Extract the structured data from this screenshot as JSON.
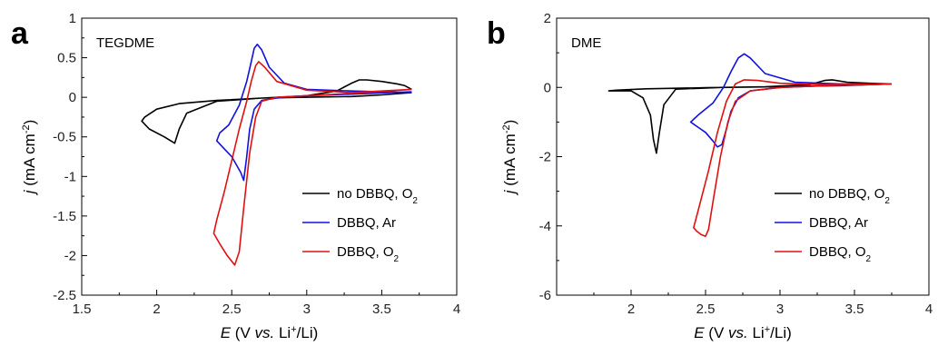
{
  "chart_data": [
    {
      "type": "line",
      "panel_label": "a",
      "inset_label": "TEGDME",
      "xlabel": {
        "italic": "E",
        "pre": " (V ",
        "vs": "vs.",
        "post": " Li",
        "sup": "+",
        "end": "/Li)"
      },
      "ylabel": {
        "italic": "j",
        "pre": " (mA cm",
        "sup": "-2",
        "end": ")"
      },
      "xlim": [
        1.5,
        4.0
      ],
      "ylim": [
        -2.5,
        1.0
      ],
      "xticks": [
        "1.5",
        "2",
        "2.5",
        "3",
        "3.5",
        "4"
      ],
      "yticks": [
        "1",
        "0.5",
        "0",
        "-0.5",
        "-1",
        "-1.5",
        "-2",
        "-2.5"
      ],
      "legend_position": "bottom-right",
      "series": [
        {
          "name": "no DBBQ, O",
          "name_sub": "2",
          "color": "#000000",
          "x": [
            3.7,
            3.5,
            3.3,
            3.0,
            2.7,
            2.4,
            2.2,
            2.15,
            2.12,
            2.05,
            1.95,
            1.9,
            1.92,
            2.0,
            2.15,
            2.4,
            2.7,
            3.0,
            3.2,
            3.3,
            3.35,
            3.4,
            3.5,
            3.6,
            3.65,
            3.7
          ],
          "y": [
            0.06,
            0.03,
            0.01,
            0.0,
            -0.01,
            -0.05,
            -0.2,
            -0.4,
            -0.58,
            -0.5,
            -0.4,
            -0.3,
            -0.25,
            -0.15,
            -0.08,
            -0.04,
            -0.01,
            0.02,
            0.08,
            0.18,
            0.22,
            0.22,
            0.2,
            0.17,
            0.15,
            0.1
          ]
        },
        {
          "name": "DBBQ, Ar",
          "color": "#1010e0",
          "x": [
            3.7,
            3.3,
            3.0,
            2.8,
            2.7,
            2.65,
            2.62,
            2.6,
            2.58,
            2.56,
            2.5,
            2.45,
            2.4,
            2.42,
            2.48,
            2.55,
            2.6,
            2.63,
            2.65,
            2.67,
            2.7,
            2.75,
            2.85,
            3.0,
            3.3,
            3.7
          ],
          "y": [
            0.07,
            0.04,
            0.02,
            -0.01,
            -0.04,
            -0.15,
            -0.4,
            -0.75,
            -1.05,
            -0.95,
            -0.75,
            -0.65,
            -0.55,
            -0.45,
            -0.35,
            -0.1,
            0.2,
            0.45,
            0.62,
            0.67,
            0.6,
            0.38,
            0.18,
            0.1,
            0.08,
            0.06
          ]
        },
        {
          "name": "DBBQ, O",
          "name_sub": "2",
          "color": "#e01010",
          "x": [
            3.7,
            3.3,
            3.0,
            2.8,
            2.7,
            2.66,
            2.62,
            2.58,
            2.55,
            2.52,
            2.47,
            2.42,
            2.38,
            2.4,
            2.45,
            2.5,
            2.55,
            2.6,
            2.63,
            2.66,
            2.68,
            2.72,
            2.8,
            3.0,
            3.3,
            3.7
          ],
          "y": [
            0.1,
            0.05,
            0.02,
            0.0,
            -0.05,
            -0.25,
            -0.7,
            -1.4,
            -1.95,
            -2.12,
            -2.0,
            -1.85,
            -1.72,
            -1.55,
            -1.2,
            -0.8,
            -0.4,
            -0.05,
            0.2,
            0.4,
            0.45,
            0.38,
            0.2,
            0.09,
            0.06,
            0.1
          ]
        }
      ]
    },
    {
      "type": "line",
      "panel_label": "b",
      "inset_label": "DME",
      "xlabel": {
        "italic": "E",
        "pre": " (V ",
        "vs": "vs.",
        "post": " Li",
        "sup": "+",
        "end": "/Li)"
      },
      "ylabel": {
        "italic": "j",
        "pre": " (mA cm",
        "sup": "-2",
        "end": ")"
      },
      "xlim": [
        1.5,
        4.0
      ],
      "ylim": [
        -6,
        2
      ],
      "xticks": [
        "2",
        "2.5",
        "3",
        "3.5",
        "4"
      ],
      "xtick_values": [
        2,
        2.5,
        3,
        3.5,
        4
      ],
      "yticks": [
        "2",
        "0",
        "-2",
        "-4",
        "-6"
      ],
      "legend_position": "bottom-right",
      "series": [
        {
          "name": "no DBBQ, O",
          "name_sub": "2",
          "color": "#000000",
          "x": [
            3.75,
            3.4,
            3.0,
            2.6,
            2.3,
            2.22,
            2.19,
            2.17,
            2.15,
            2.13,
            2.08,
            2.0,
            1.85,
            1.9,
            2.1,
            2.5,
            2.9,
            3.2,
            3.3,
            3.35,
            3.45,
            3.6,
            3.75
          ],
          "y": [
            0.1,
            0.05,
            0.02,
            0.0,
            -0.05,
            -0.5,
            -1.3,
            -1.9,
            -1.5,
            -0.8,
            -0.3,
            -0.1,
            -0.1,
            -0.08,
            -0.04,
            -0.01,
            0.02,
            0.08,
            0.2,
            0.22,
            0.15,
            0.12,
            0.1
          ]
        },
        {
          "name": "DBBQ, Ar",
          "color": "#1010e0",
          "x": [
            3.75,
            3.3,
            3.0,
            2.8,
            2.72,
            2.67,
            2.64,
            2.61,
            2.58,
            2.55,
            2.5,
            2.45,
            2.4,
            2.45,
            2.55,
            2.62,
            2.67,
            2.72,
            2.76,
            2.8,
            2.9,
            3.1,
            3.4,
            3.75
          ],
          "y": [
            0.1,
            0.05,
            0.0,
            -0.1,
            -0.3,
            -0.7,
            -1.2,
            -1.65,
            -1.72,
            -1.55,
            -1.3,
            -1.15,
            -1.0,
            -0.8,
            -0.45,
            0.0,
            0.45,
            0.85,
            0.97,
            0.85,
            0.4,
            0.15,
            0.1,
            0.1
          ]
        },
        {
          "name": "DBBQ, O",
          "name_sub": "2",
          "color": "#e01010",
          "x": [
            3.75,
            3.3,
            3.0,
            2.8,
            2.7,
            2.65,
            2.6,
            2.55,
            2.52,
            2.5,
            2.47,
            2.44,
            2.42,
            2.46,
            2.52,
            2.58,
            2.64,
            2.7,
            2.76,
            2.85,
            3.0,
            3.3,
            3.75
          ],
          "y": [
            0.1,
            0.05,
            0.0,
            -0.1,
            -0.4,
            -1.0,
            -2.0,
            -3.3,
            -4.1,
            -4.3,
            -4.25,
            -4.15,
            -4.05,
            -3.4,
            -2.4,
            -1.3,
            -0.4,
            0.1,
            0.22,
            0.2,
            0.12,
            0.08,
            0.1
          ]
        }
      ]
    }
  ]
}
